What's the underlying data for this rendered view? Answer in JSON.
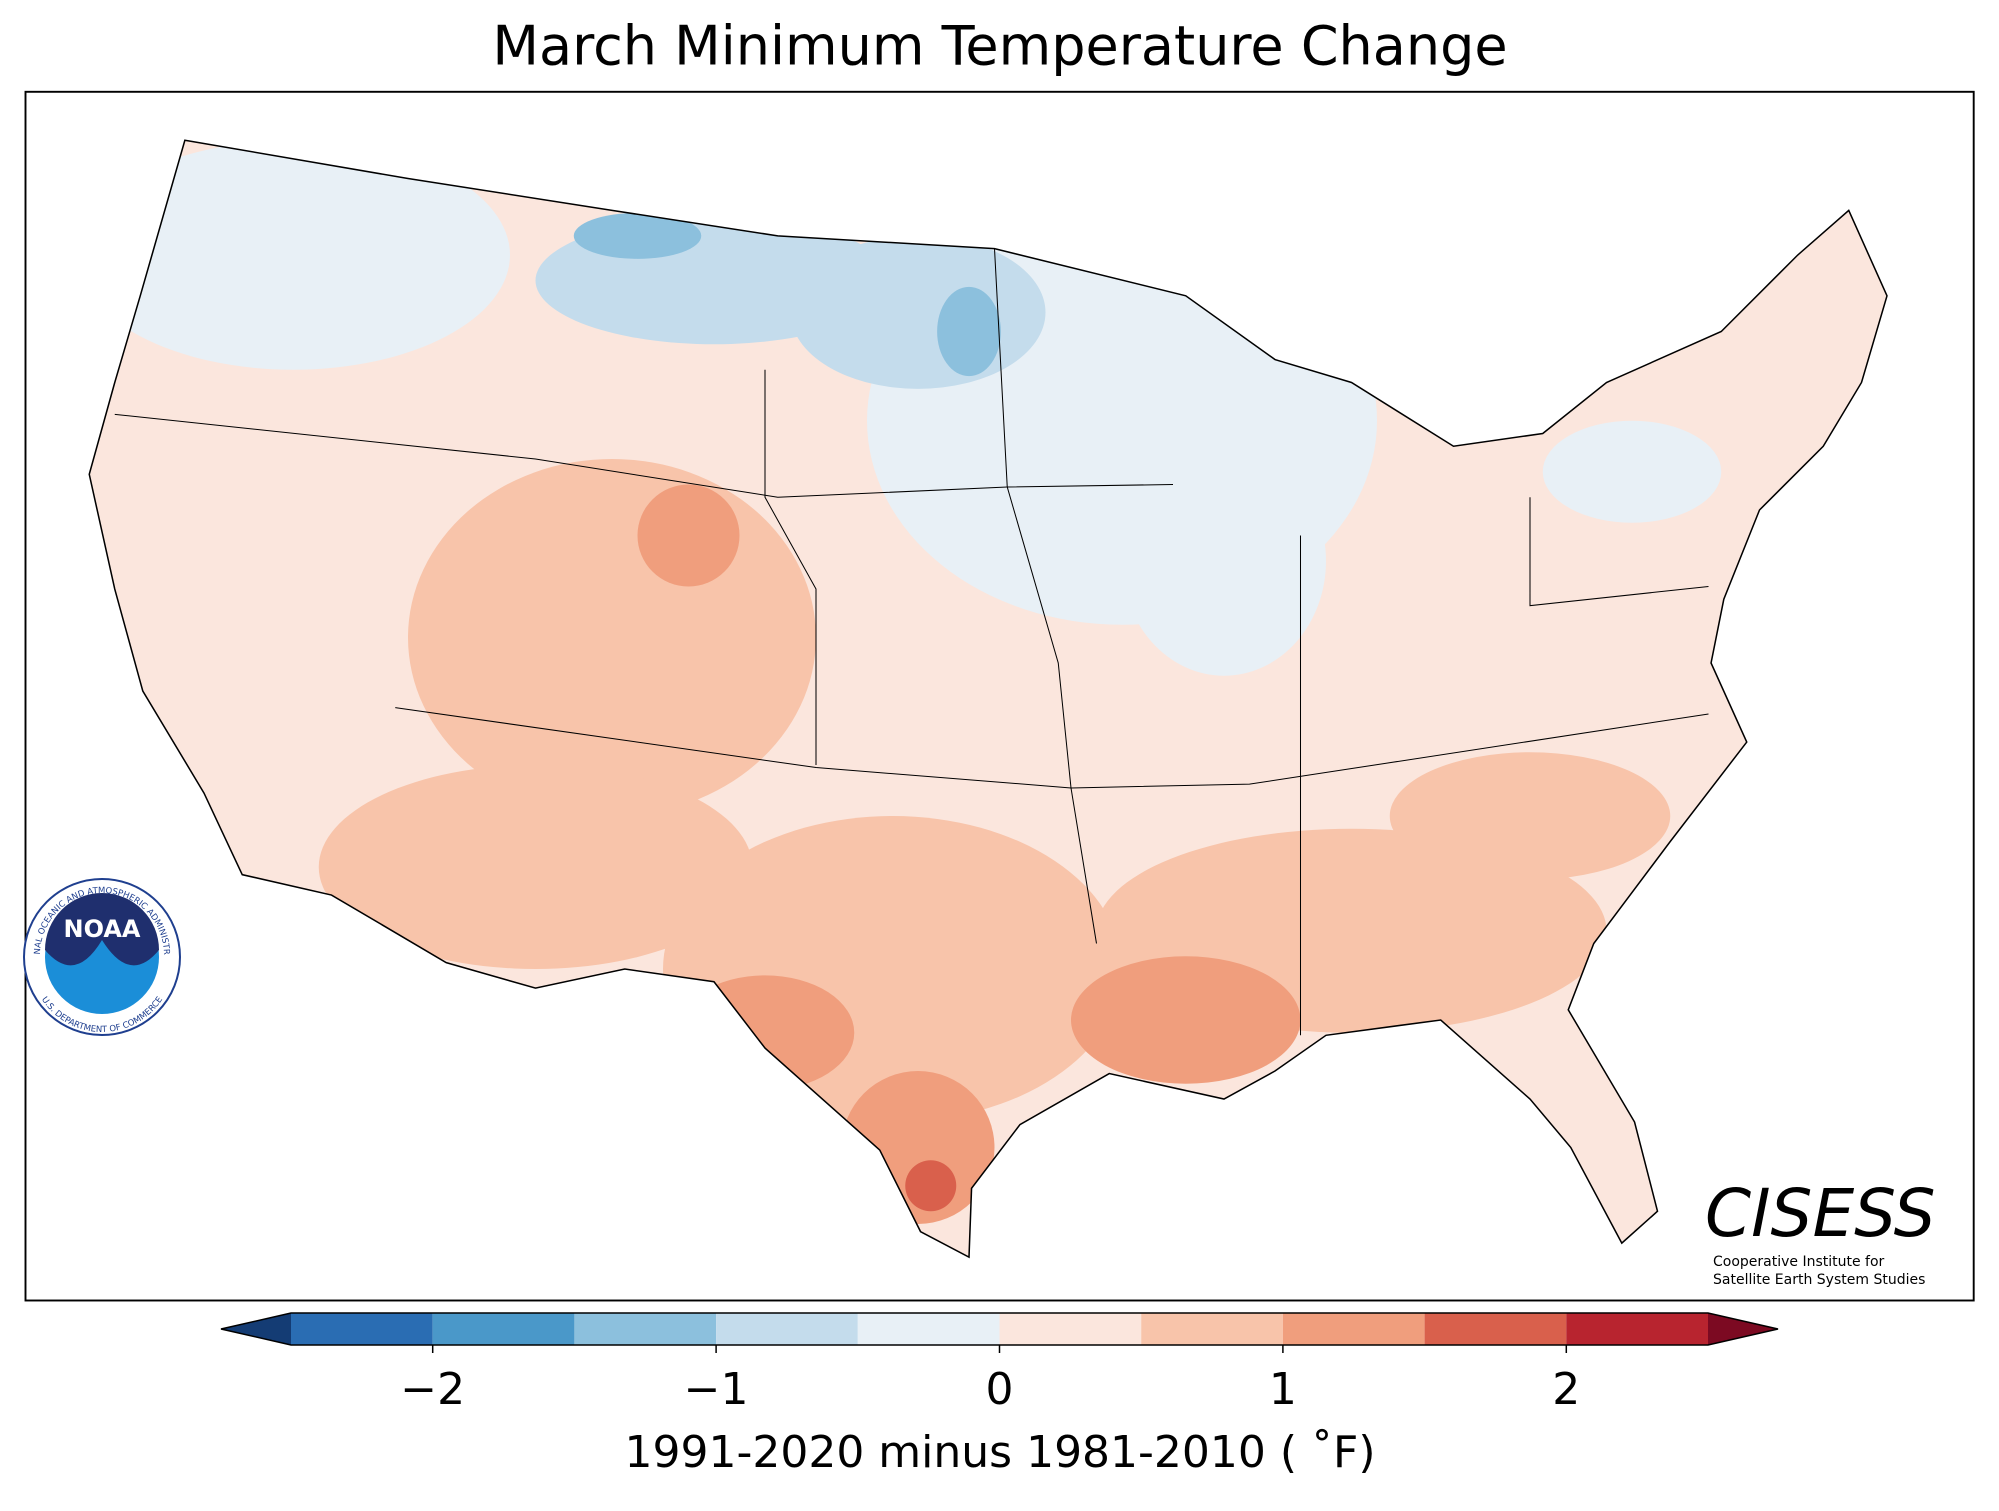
{
  "title": "March Minimum Temperature Change",
  "colorbar": {
    "bounds": [
      -2.5,
      -2,
      -1.5,
      -1,
      -0.5,
      0,
      0.5,
      1,
      1.5,
      2,
      2.5
    ],
    "colors": [
      "#2a6db3",
      "#4a98c9",
      "#8cc0dd",
      "#c4dcec",
      "#e8f0f6",
      "#fbe6dd",
      "#f8c4aa",
      "#f09e7d",
      "#d9604c",
      "#b8242f"
    ],
    "extend_colors": [
      "#143c74",
      "#7c0a22"
    ],
    "ticks": [
      {
        "value": -2,
        "label": "−2"
      },
      {
        "value": -1,
        "label": "−1"
      },
      0,
      1,
      2
    ],
    "label": "1991-2020 minus 1981-2010 ( ˚F)"
  },
  "logos": {
    "noaa": {
      "name": "NOAA",
      "ring_top": "NATIONAL OCEANIC AND ATMOSPHERIC ADMINISTRATION",
      "ring_bottom": "U.S. DEPARTMENT OF COMMERCE"
    },
    "cisess": {
      "name": "CISESS",
      "line1": "Cooperative Institute for",
      "line2": "Satellite Earth System Studies"
    }
  }
}
